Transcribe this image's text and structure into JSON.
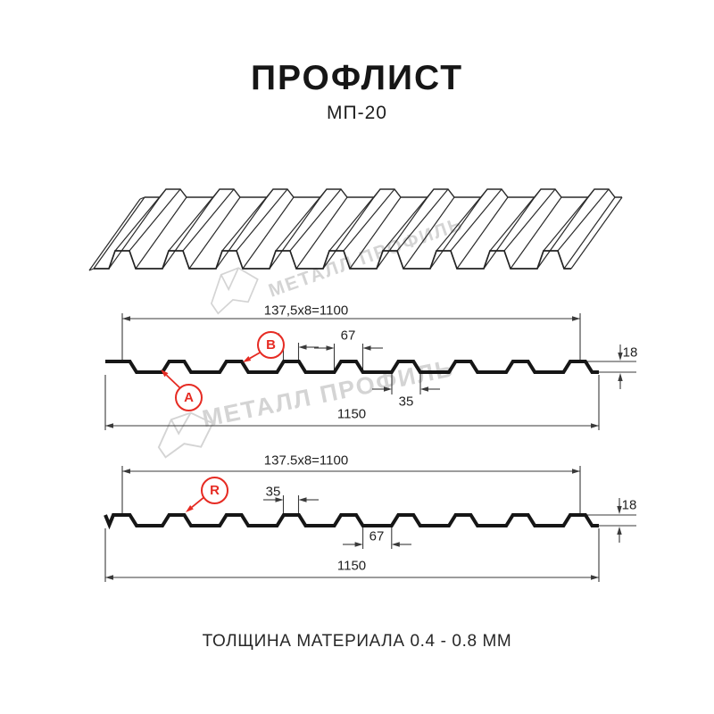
{
  "header": {
    "title": "ПРОФЛИСТ",
    "subtitle": "МП-20"
  },
  "footer": {
    "caption": "ТОЛЩИНА МАТЕРИАЛА 0.4 - 0.8 ММ"
  },
  "watermark": {
    "text": "МЕТАЛЛ ПРОФИЛЬ"
  },
  "colors": {
    "callout_red": "#e62b23",
    "line_black": "#161616",
    "watermark_gray": "#d4d4d4"
  },
  "diagram_top": {
    "coverage_width": "137,5x8=1100",
    "rib_top_width": "35",
    "rib_base_width": "67",
    "profile_height": "18",
    "rib_top_width_bottom": "35",
    "overall_width": "1150",
    "label_a": "A",
    "label_b": "B"
  },
  "diagram_bottom": {
    "coverage_width": "137.5x8=1100",
    "rib_top_width": "35",
    "valley_width": "67",
    "profile_height": "18",
    "overall_width": "1150",
    "label_r": "R"
  }
}
